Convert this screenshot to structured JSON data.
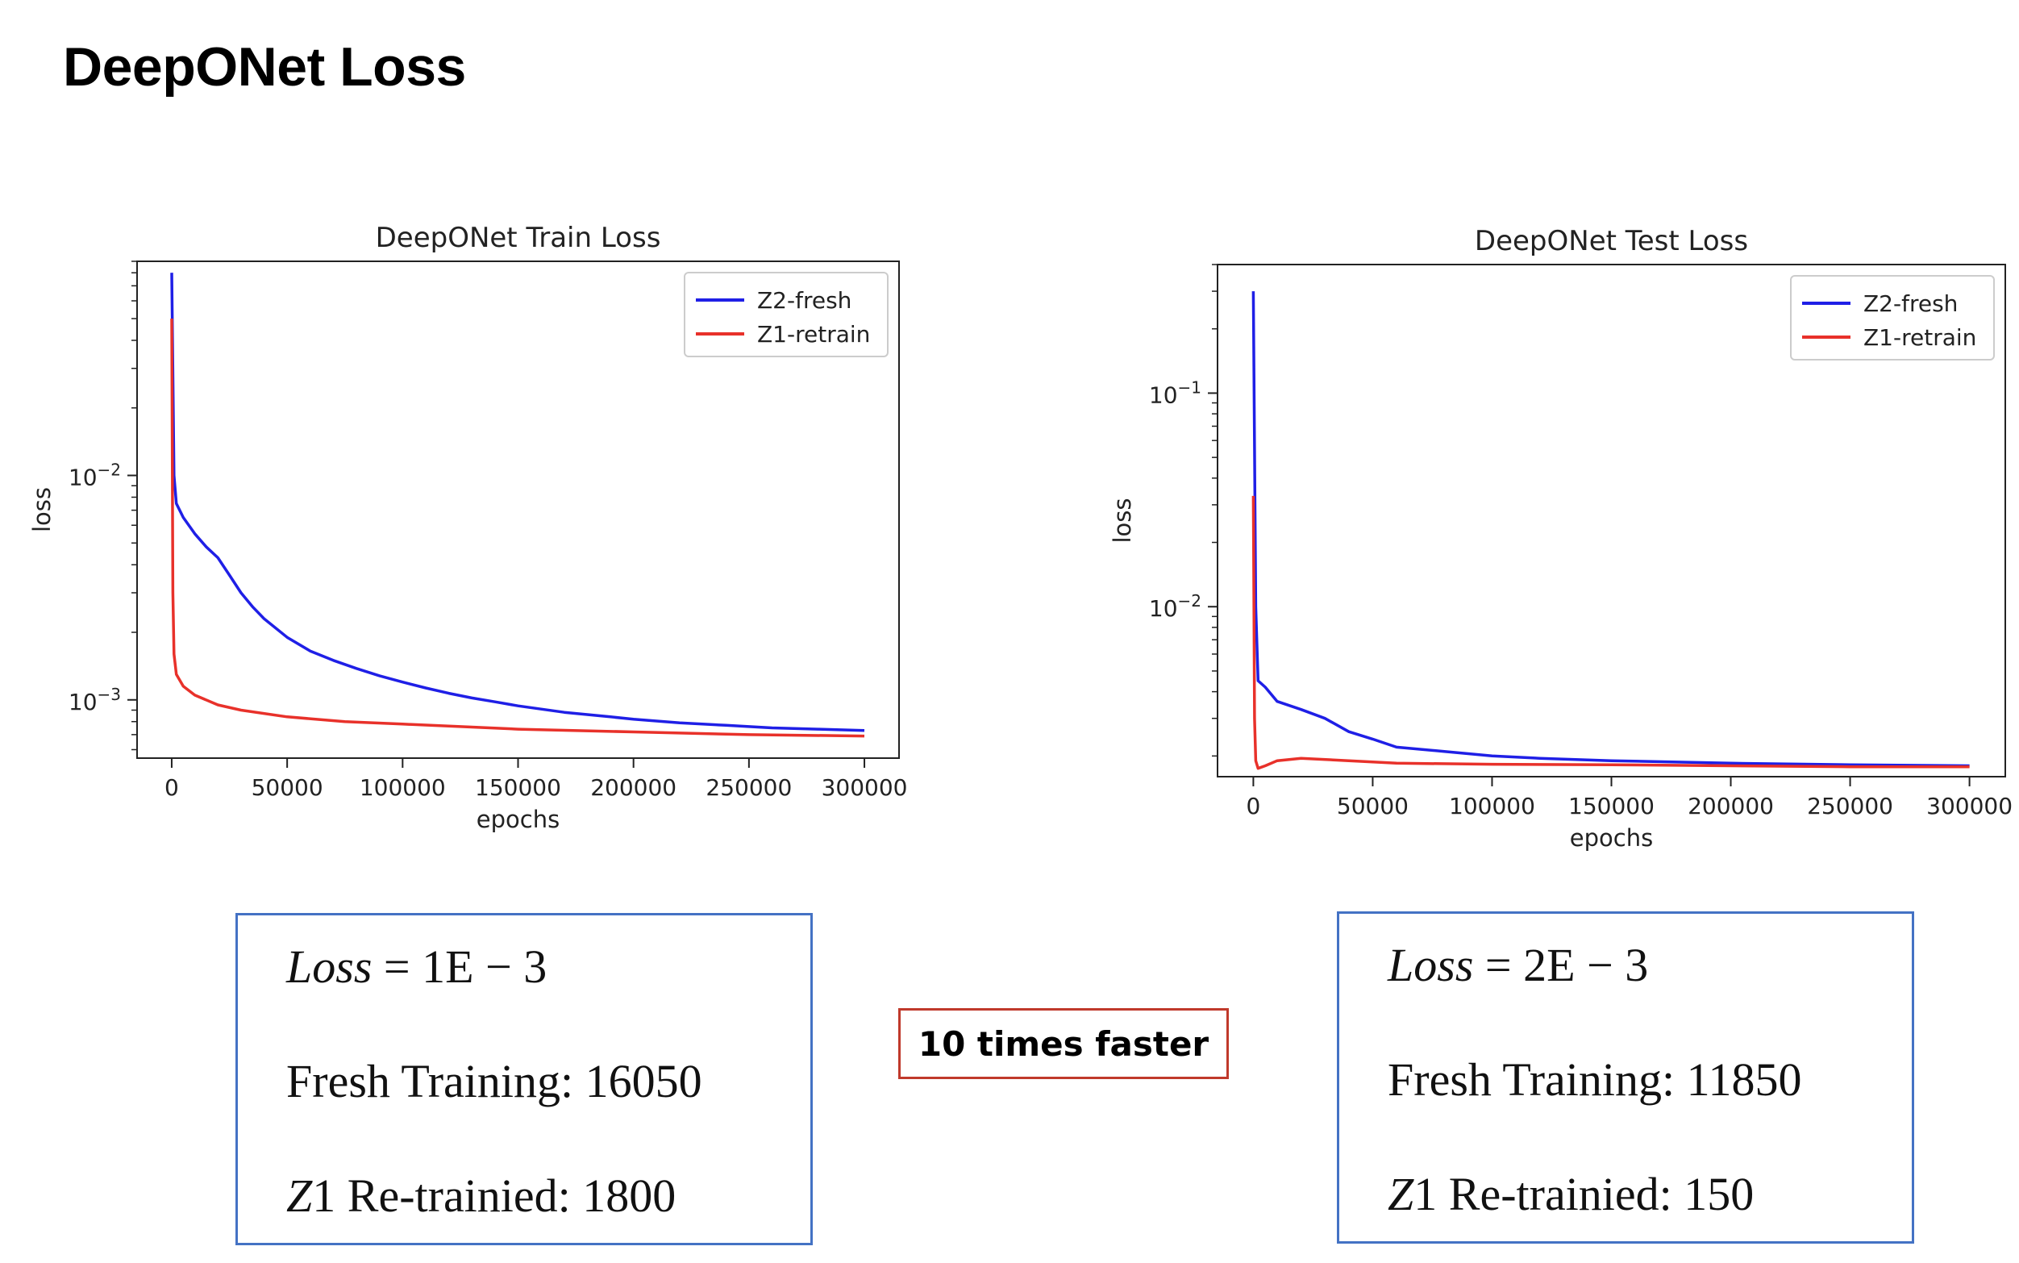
{
  "slide_title": "DeepONet Loss",
  "colors": {
    "blue": "#1f1fe6",
    "red": "#e8312a",
    "box_border": "#4472c4",
    "callout_border": "#c0392b"
  },
  "chart_data": [
    {
      "type": "line",
      "title": "DeepONet Train Loss",
      "xlabel": "epochs",
      "ylabel": "loss",
      "yscale": "log",
      "xlim": [
        -15000,
        315000
      ],
      "ylim": [
        0.00055,
        0.09
      ],
      "xticks": [
        0,
        50000,
        100000,
        150000,
        200000,
        250000,
        300000
      ],
      "xtick_labels": [
        "0",
        "50000",
        "100000",
        "150000",
        "200000",
        "250000",
        "300000"
      ],
      "ytick_labels": [
        {
          "value": 0.001,
          "base": "10",
          "exp": "−3"
        },
        {
          "value": 0.01,
          "base": "10",
          "exp": "−2"
        }
      ],
      "legend": "top-right",
      "series": [
        {
          "name": "Z2-fresh",
          "color": "#1f1fe6",
          "x": [
            0,
            1000,
            2000,
            5000,
            10000,
            15000,
            20000,
            25000,
            30000,
            35000,
            40000,
            50000,
            60000,
            70000,
            80000,
            90000,
            100000,
            110000,
            120000,
            130000,
            140000,
            150000,
            160000,
            170000,
            180000,
            190000,
            200000,
            220000,
            240000,
            260000,
            280000,
            300000
          ],
          "y": [
            0.08,
            0.01,
            0.0075,
            0.0065,
            0.0055,
            0.0048,
            0.0043,
            0.0036,
            0.003,
            0.0026,
            0.0023,
            0.0019,
            0.00165,
            0.0015,
            0.00138,
            0.00128,
            0.0012,
            0.00113,
            0.00107,
            0.00102,
            0.00098,
            0.00094,
            0.00091,
            0.00088,
            0.00086,
            0.00084,
            0.00082,
            0.00079,
            0.00077,
            0.00075,
            0.00074,
            0.00073
          ]
        },
        {
          "name": "Z1-retrain",
          "color": "#e8312a",
          "x": [
            0,
            500,
            1000,
            2000,
            5000,
            10000,
            20000,
            30000,
            50000,
            75000,
            100000,
            125000,
            150000,
            200000,
            250000,
            300000
          ],
          "y": [
            0.05,
            0.003,
            0.0016,
            0.0013,
            0.00115,
            0.00105,
            0.00095,
            0.0009,
            0.00084,
            0.0008,
            0.00078,
            0.00076,
            0.00074,
            0.00072,
            0.0007,
            0.00069
          ]
        }
      ]
    },
    {
      "type": "line",
      "title": "DeepONet Test Loss",
      "xlabel": "epochs",
      "ylabel": "loss",
      "yscale": "log",
      "xlim": [
        -15000,
        315000
      ],
      "ylim": [
        0.0016,
        0.4
      ],
      "xticks": [
        0,
        50000,
        100000,
        150000,
        200000,
        250000,
        300000
      ],
      "xtick_labels": [
        "0",
        "50000",
        "100000",
        "150000",
        "200000",
        "250000",
        "300000"
      ],
      "ytick_labels": [
        {
          "value": 0.01,
          "base": "10",
          "exp": "−2"
        },
        {
          "value": 0.1,
          "base": "10",
          "exp": "−1"
        }
      ],
      "legend": "top-right",
      "series": [
        {
          "name": "Z2-fresh",
          "color": "#1f1fe6",
          "x": [
            0,
            1000,
            2000,
            5000,
            10000,
            20000,
            30000,
            40000,
            50000,
            60000,
            80000,
            100000,
            120000,
            150000,
            200000,
            250000,
            300000
          ],
          "y": [
            0.3,
            0.01,
            0.0045,
            0.0042,
            0.0036,
            0.0033,
            0.003,
            0.0026,
            0.0024,
            0.0022,
            0.0021,
            0.002,
            0.00195,
            0.0019,
            0.00185,
            0.00182,
            0.0018
          ]
        },
        {
          "name": "Z1-retrain",
          "color": "#e8312a",
          "x": [
            0,
            500,
            1000,
            2000,
            5000,
            10000,
            20000,
            40000,
            60000,
            100000,
            150000,
            200000,
            250000,
            300000
          ],
          "y": [
            0.033,
            0.003,
            0.0019,
            0.00175,
            0.0018,
            0.0019,
            0.00195,
            0.0019,
            0.00185,
            0.00183,
            0.00182,
            0.0018,
            0.00178,
            0.00178
          ]
        }
      ]
    }
  ],
  "boxes": {
    "left": {
      "loss_label": "Loss",
      "loss_value": "= 1E − 3",
      "fresh_label": "Fresh Training:",
      "fresh_value": "16050",
      "retrain_z": "Z",
      "retrain_label": "1 Re-trainied:",
      "retrain_value": "1800"
    },
    "right": {
      "loss_label": "Loss",
      "loss_value": "= 2E − 3",
      "fresh_label": "Fresh Training:",
      "fresh_value": "11850",
      "retrain_z": "Z",
      "retrain_label": "1 Re-trainied:",
      "retrain_value": "150"
    }
  },
  "callout": "10 times faster"
}
